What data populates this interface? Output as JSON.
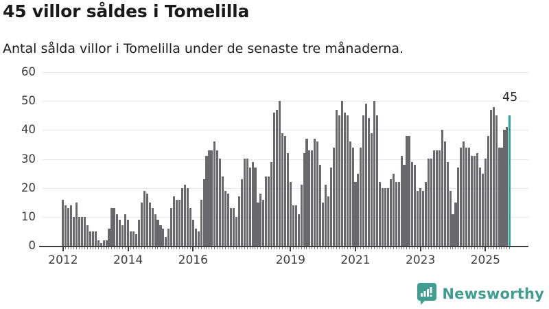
{
  "header": {
    "title": "45 villor såldes i Tomelilla",
    "subtitle": "Antal sålda villor i Tomelilla under de senaste tre månaderna."
  },
  "annotation": {
    "last_value_label": "45"
  },
  "branding": {
    "name": "Newsworthy",
    "icon": "newsworthy-bubble-bar-chart-icon"
  },
  "colors": {
    "bar": "#69696d",
    "highlight_bar": "#21a5a1",
    "brand_teal": "#3f9d92",
    "axis": "#3c3c3c",
    "grid": "#e7e7e7",
    "text": "#191919"
  },
  "chart_data": {
    "type": "bar",
    "title": "45 villor såldes i Tomelilla",
    "subtitle": "Antal sålda villor i Tomelilla under de senaste tre månaderna.",
    "unit": "sålda villor (rullande 3 månader)",
    "x_start": "2012-01",
    "x_end": "2025-10",
    "ylim": [
      0,
      60
    ],
    "yticks": [
      0,
      10,
      20,
      30,
      40,
      50,
      60
    ],
    "grid": "horizontal",
    "legend": "none",
    "highlight_last_bar": true,
    "last_value": 45,
    "xticks": [
      {
        "label": "2012",
        "month_index": 0
      },
      {
        "label": "2014",
        "month_index": 24
      },
      {
        "label": "2016",
        "month_index": 48
      },
      {
        "label": "2019",
        "month_index": 84
      },
      {
        "label": "2021",
        "month_index": 108
      },
      {
        "label": "2023",
        "month_index": 132
      },
      {
        "label": "2025",
        "month_index": 156
      }
    ],
    "values": [
      16,
      14,
      13,
      14,
      10,
      15,
      10,
      10,
      10,
      7,
      5,
      5,
      5,
      2,
      1,
      2,
      2,
      6,
      13,
      13,
      11,
      9,
      7,
      11,
      9,
      5,
      5,
      4,
      9,
      15,
      19,
      18,
      15,
      13,
      11,
      9,
      7,
      6,
      3,
      6,
      13,
      17,
      16,
      16,
      20,
      21,
      20,
      13,
      9,
      6,
      5,
      16,
      23,
      31,
      33,
      33,
      36,
      33,
      30,
      24,
      19,
      18,
      13,
      13,
      10,
      17,
      23,
      30,
      30,
      27,
      29,
      27,
      15,
      18,
      16,
      24,
      24,
      29,
      46,
      47,
      50,
      39,
      38,
      32,
      22,
      14,
      14,
      11,
      21,
      32,
      37,
      33,
      33,
      37,
      36,
      28,
      15,
      21,
      17,
      27,
      34,
      47,
      45,
      50,
      46,
      45,
      36,
      34,
      22,
      25,
      34,
      45,
      49,
      44,
      39,
      50,
      45,
      22,
      20,
      20,
      20,
      23,
      25,
      22,
      22,
      31,
      28,
      38,
      38,
      29,
      28,
      19,
      20,
      19,
      22,
      30,
      30,
      33,
      33,
      33,
      40,
      36,
      29,
      19,
      11,
      15,
      27,
      34,
      36,
      34,
      34,
      31,
      31,
      32,
      27,
      25,
      30,
      38,
      47,
      48,
      45,
      34,
      34,
      40,
      41,
      45
    ]
  }
}
